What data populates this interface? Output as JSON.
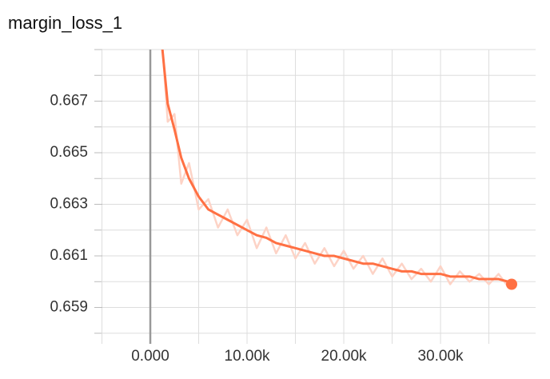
{
  "chart_data": {
    "type": "line",
    "title": "margin_loss_1",
    "x": [
      1200,
      1800,
      2500,
      3200,
      4000,
      5000,
      6000,
      7000,
      8000,
      9000,
      10000,
      11000,
      12000,
      13000,
      14000,
      15000,
      16000,
      17000,
      18000,
      19000,
      20000,
      21000,
      22000,
      23000,
      24000,
      25000,
      26000,
      27000,
      28000,
      29000,
      30000,
      31000,
      32000,
      33000,
      34000,
      35000,
      36000,
      37000,
      37350
    ],
    "series": [
      {
        "color": "#fdd3c6",
        "values": [
          0.6694,
          0.6662,
          0.6665,
          0.6638,
          0.6646,
          0.6628,
          0.6632,
          0.6621,
          0.6628,
          0.6618,
          0.6624,
          0.6613,
          0.6621,
          0.6611,
          0.6618,
          0.6609,
          0.6615,
          0.6607,
          0.6613,
          0.6606,
          0.6612,
          0.6605,
          0.661,
          0.6603,
          0.6609,
          0.6602,
          0.6607,
          0.6601,
          0.6605,
          0.66,
          0.6606,
          0.6599,
          0.6604,
          0.66,
          0.6603,
          0.6599,
          0.6603,
          0.6598,
          0.66
        ]
      },
      {
        "color": "#ff7043",
        "values": [
          0.6692,
          0.6669,
          0.6659,
          0.6648,
          0.664,
          0.6633,
          0.6628,
          0.6626,
          0.6624,
          0.6622,
          0.662,
          0.6618,
          0.6617,
          0.6615,
          0.6614,
          0.6613,
          0.6612,
          0.6611,
          0.661,
          0.661,
          0.6609,
          0.6608,
          0.6607,
          0.6607,
          0.6606,
          0.6605,
          0.6604,
          0.6604,
          0.6603,
          0.6603,
          0.6603,
          0.6602,
          0.6602,
          0.6602,
          0.6601,
          0.6601,
          0.6601,
          0.66,
          0.6599
        ]
      }
    ],
    "xlim": [
      -4960,
      39830
    ],
    "ylim": [
      0.6579,
      0.669
    ],
    "xticks": [
      {
        "value": 0,
        "label": "0.000"
      },
      {
        "value": 10000,
        "label": "10.00k"
      },
      {
        "value": 20000,
        "label": "20.00k"
      },
      {
        "value": 30000,
        "label": "30.00k"
      }
    ],
    "x_minor_ticks": [
      -5000,
      5000,
      15000,
      25000,
      35000
    ],
    "yticks": [
      0.659,
      0.661,
      0.663,
      0.665,
      0.667
    ],
    "y_minor_ticks": [
      0.658,
      0.66,
      0.662,
      0.664,
      0.666,
      0.668,
      0.669
    ],
    "grid": true
  }
}
